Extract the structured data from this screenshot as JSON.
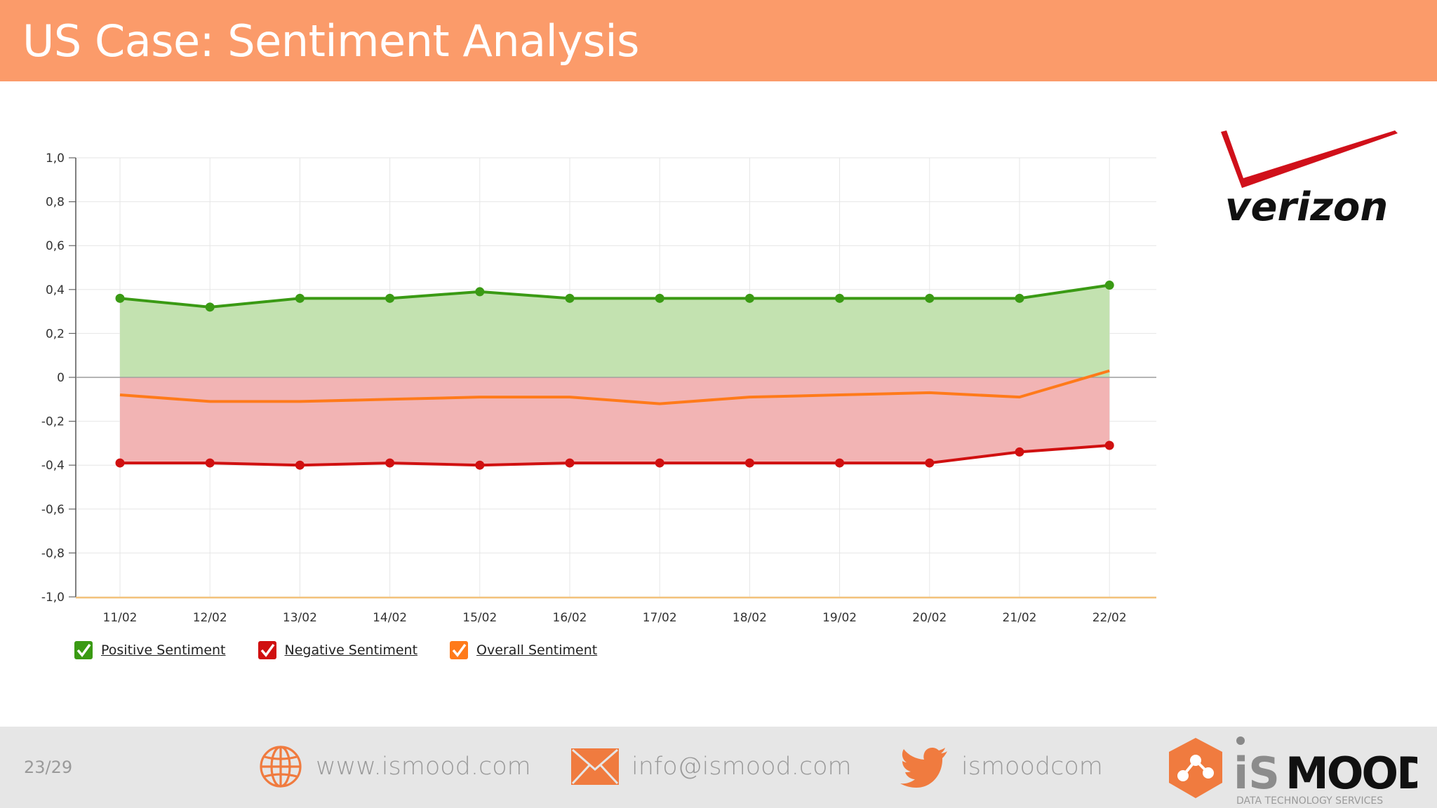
{
  "header": {
    "title": "US Case: Sentiment Analysis"
  },
  "colors": {
    "header_bg": "#fb9b6a",
    "positive": "#3a9a14",
    "positive_fill": "#c3e2b0",
    "negative": "#d01010",
    "negative_fill": "#f2b4b4",
    "overall": "#ff7a1a"
  },
  "chart_data": {
    "type": "line",
    "categories": [
      "11/02",
      "12/02",
      "13/02",
      "14/02",
      "15/02",
      "16/02",
      "17/02",
      "18/02",
      "19/02",
      "20/02",
      "21/02",
      "22/02"
    ],
    "series": [
      {
        "name": "Positive Sentiment",
        "values": [
          0.36,
          0.32,
          0.36,
          0.36,
          0.39,
          0.36,
          0.36,
          0.36,
          0.36,
          0.36,
          0.36,
          0.42
        ]
      },
      {
        "name": "Negative Sentiment",
        "values": [
          -0.39,
          -0.39,
          -0.4,
          -0.39,
          -0.4,
          -0.39,
          -0.39,
          -0.39,
          -0.39,
          -0.39,
          -0.34,
          -0.31
        ]
      },
      {
        "name": "Overall Sentiment",
        "values": [
          -0.08,
          -0.11,
          -0.11,
          -0.1,
          -0.09,
          -0.09,
          -0.12,
          -0.09,
          -0.08,
          -0.07,
          -0.09,
          0.03
        ]
      }
    ],
    "ylim": [
      -1.0,
      1.0
    ],
    "yticks": [
      "1,0",
      "0,8",
      "0,6",
      "0,4",
      "0,2",
      "0",
      "-0,2",
      "-0,4",
      "-0,6",
      "-0,8",
      "-1,0"
    ],
    "ytick_values": [
      1.0,
      0.8,
      0.6,
      0.4,
      0.2,
      0,
      -0.2,
      -0.4,
      -0.6,
      -0.8,
      -1.0
    ],
    "grid": true,
    "legend_position": "bottom-left"
  },
  "footer": {
    "page": "23/29",
    "website": "www.ismood.com",
    "email": "info@ismood.com",
    "twitter": "ismoodcom",
    "brand_tagline": "DATA TECHNOLOGY SERVICES"
  },
  "logos": {
    "verizon": "verizon",
    "ismood_prefix": "iS",
    "ismood_suffix": "MOOD"
  },
  "icons": [
    "globe-icon",
    "envelope-icon",
    "twitter-bird-icon",
    "checkbox-check-icon"
  ]
}
